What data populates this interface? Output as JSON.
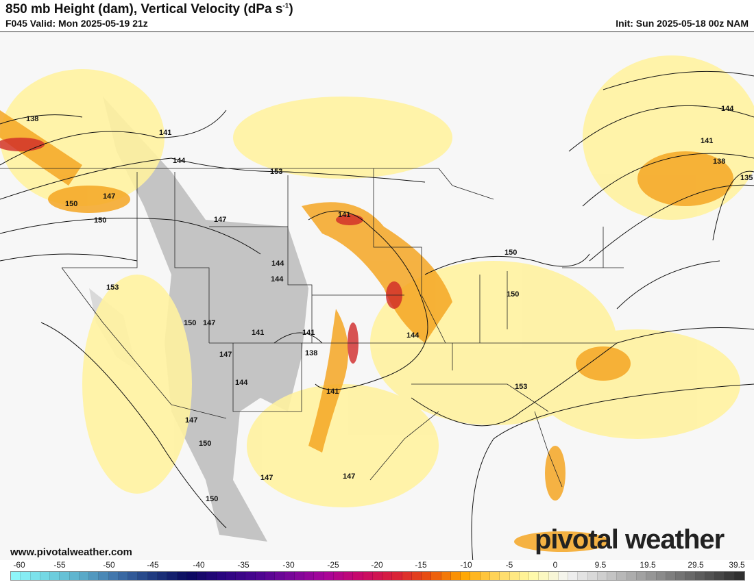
{
  "header": {
    "title": "850 mb Height (dam), Vertical Velocity (dPa s",
    "title_sup": "-1",
    "title_end": ")",
    "valid": "F045 Valid: Mon 2025-05-19 21z",
    "init": "Init: Sun 2025-05-18 00z NAM"
  },
  "footer": {
    "url": "www.pivotalweather.com",
    "brand": "pivotal weather"
  },
  "map": {
    "contour_labels": [
      "138",
      "141",
      "144",
      "147",
      "150",
      "153",
      "147",
      "150",
      "153",
      "147",
      "141",
      "144",
      "147",
      "150",
      "141",
      "138",
      "144",
      "141",
      "144",
      "150",
      "150",
      "147",
      "150",
      "147",
      "153",
      "150",
      "147",
      "144",
      "141",
      "138",
      "135",
      "141",
      "144"
    ]
  },
  "colorbar": {
    "ticks": [
      "-60",
      "-55",
      "-50",
      "-45",
      "-40",
      "-35",
      "-30",
      "-25",
      "-20",
      "-15",
      "-10",
      "-5",
      "0",
      "9.5",
      "19.5",
      "29.5",
      "39.5"
    ],
    "colors": [
      "#8ef6fa",
      "#6fd3e0",
      "#5aa8c8",
      "#3d6ea8",
      "#1f3a80",
      "#0a0a5e",
      "#2a0580",
      "#4a0590",
      "#7a069a",
      "#a8059a",
      "#c8086a",
      "#d8203a",
      "#e85010",
      "#ffa500",
      "#ffd860",
      "#fffaa8",
      "#f4f4f4",
      "#d0d0d0",
      "#a8a8a8",
      "#808080",
      "#585858",
      "#303030"
    ]
  }
}
